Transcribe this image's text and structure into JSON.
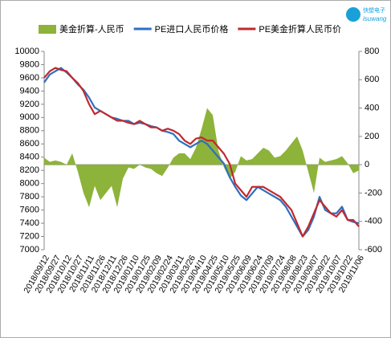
{
  "logo": {
    "cn": "快塑电子",
    "en": "isuwang"
  },
  "chart_data": {
    "type": "combo",
    "categories": [
      "2018/09/12",
      null,
      "2018/09/27",
      null,
      "2018/10/12",
      null,
      "2018/10/27",
      null,
      "2018/11/11",
      null,
      "2018/11/26",
      null,
      "2018/12/11",
      null,
      "2018/12/26",
      null,
      "2019/01/10",
      null,
      "2019/01/25",
      null,
      "2019/02/09",
      null,
      "2019/02/24",
      null,
      "2019/03/11",
      null,
      "2019/03/26",
      null,
      "2019/04/10",
      null,
      "2019/04/25",
      null,
      "2019/05/10",
      null,
      "2019/05/25",
      null,
      "2019/06/09",
      null,
      "2019/06/24",
      null,
      "2019/07/09",
      null,
      "2019/07/24",
      null,
      "2019/08/08",
      null,
      "2019/08/23",
      null,
      "2019/09/07",
      null,
      "2019/09/22",
      null,
      "2019/10/07",
      null,
      "2019/10/22",
      null,
      "2019/11/06"
    ],
    "series": [
      {
        "name": "美金折算-人民币",
        "type": "area",
        "axis": "y2",
        "color": "#8db33a",
        "values": [
          50,
          20,
          30,
          20,
          0,
          80,
          -50,
          -200,
          -300,
          -150,
          -250,
          -200,
          -150,
          -300,
          -100,
          -20,
          -30,
          0,
          -20,
          -30,
          -60,
          -80,
          -20,
          50,
          80,
          80,
          40,
          120,
          250,
          400,
          350,
          100,
          -20,
          -100,
          -50,
          60,
          30,
          40,
          80,
          120,
          100,
          50,
          60,
          100,
          150,
          200,
          100,
          -50,
          -200,
          50,
          20,
          30,
          40,
          60,
          10,
          -60,
          -40
        ]
      },
      {
        "name": "PE进口人民币价格",
        "type": "line",
        "color": "#2e6fc0",
        "values": [
          9530,
          9650,
          9700,
          9750,
          9680,
          9600,
          9500,
          9420,
          9300,
          9150,
          9100,
          9050,
          9000,
          8980,
          8950,
          8950,
          8900,
          8920,
          8900,
          8870,
          8850,
          8800,
          8780,
          8750,
          8650,
          8600,
          8550,
          8600,
          8650,
          8600,
          8500,
          8400,
          8300,
          8100,
          7950,
          7820,
          7750,
          7850,
          7950,
          7900,
          7850,
          7800,
          7750,
          7650,
          7500,
          7350,
          7200,
          7300,
          7500,
          7800,
          7600,
          7550,
          7550,
          7650,
          7450,
          7420,
          7400
        ]
      },
      {
        "name": "PE美金折算人民币价",
        "type": "line",
        "color": "#c0292e",
        "values": [
          9600,
          9700,
          9750,
          9720,
          9700,
          9600,
          9520,
          9400,
          9200,
          9050,
          9100,
          9050,
          9000,
          8950,
          8950,
          8920,
          8900,
          8950,
          8900,
          8850,
          8850,
          8800,
          8830,
          8800,
          8750,
          8650,
          8600,
          8680,
          8700,
          8650,
          8650,
          8550,
          8450,
          8300,
          8000,
          7900,
          7800,
          7950,
          7950,
          7950,
          7900,
          7850,
          7800,
          7700,
          7600,
          7400,
          7200,
          7350,
          7550,
          7750,
          7650,
          7550,
          7500,
          7600,
          7450,
          7450,
          7350
        ]
      }
    ],
    "ylim": [
      7000,
      10000
    ],
    "yticks": [
      7000,
      7200,
      7400,
      7600,
      7800,
      8000,
      8200,
      8400,
      8600,
      8800,
      9000,
      9200,
      9400,
      9600,
      9800,
      10000
    ],
    "y2lim": [
      -600,
      800
    ],
    "y2ticks": [
      -600,
      -400,
      -200,
      0,
      200,
      400,
      600,
      800
    ],
    "legend": "top"
  }
}
